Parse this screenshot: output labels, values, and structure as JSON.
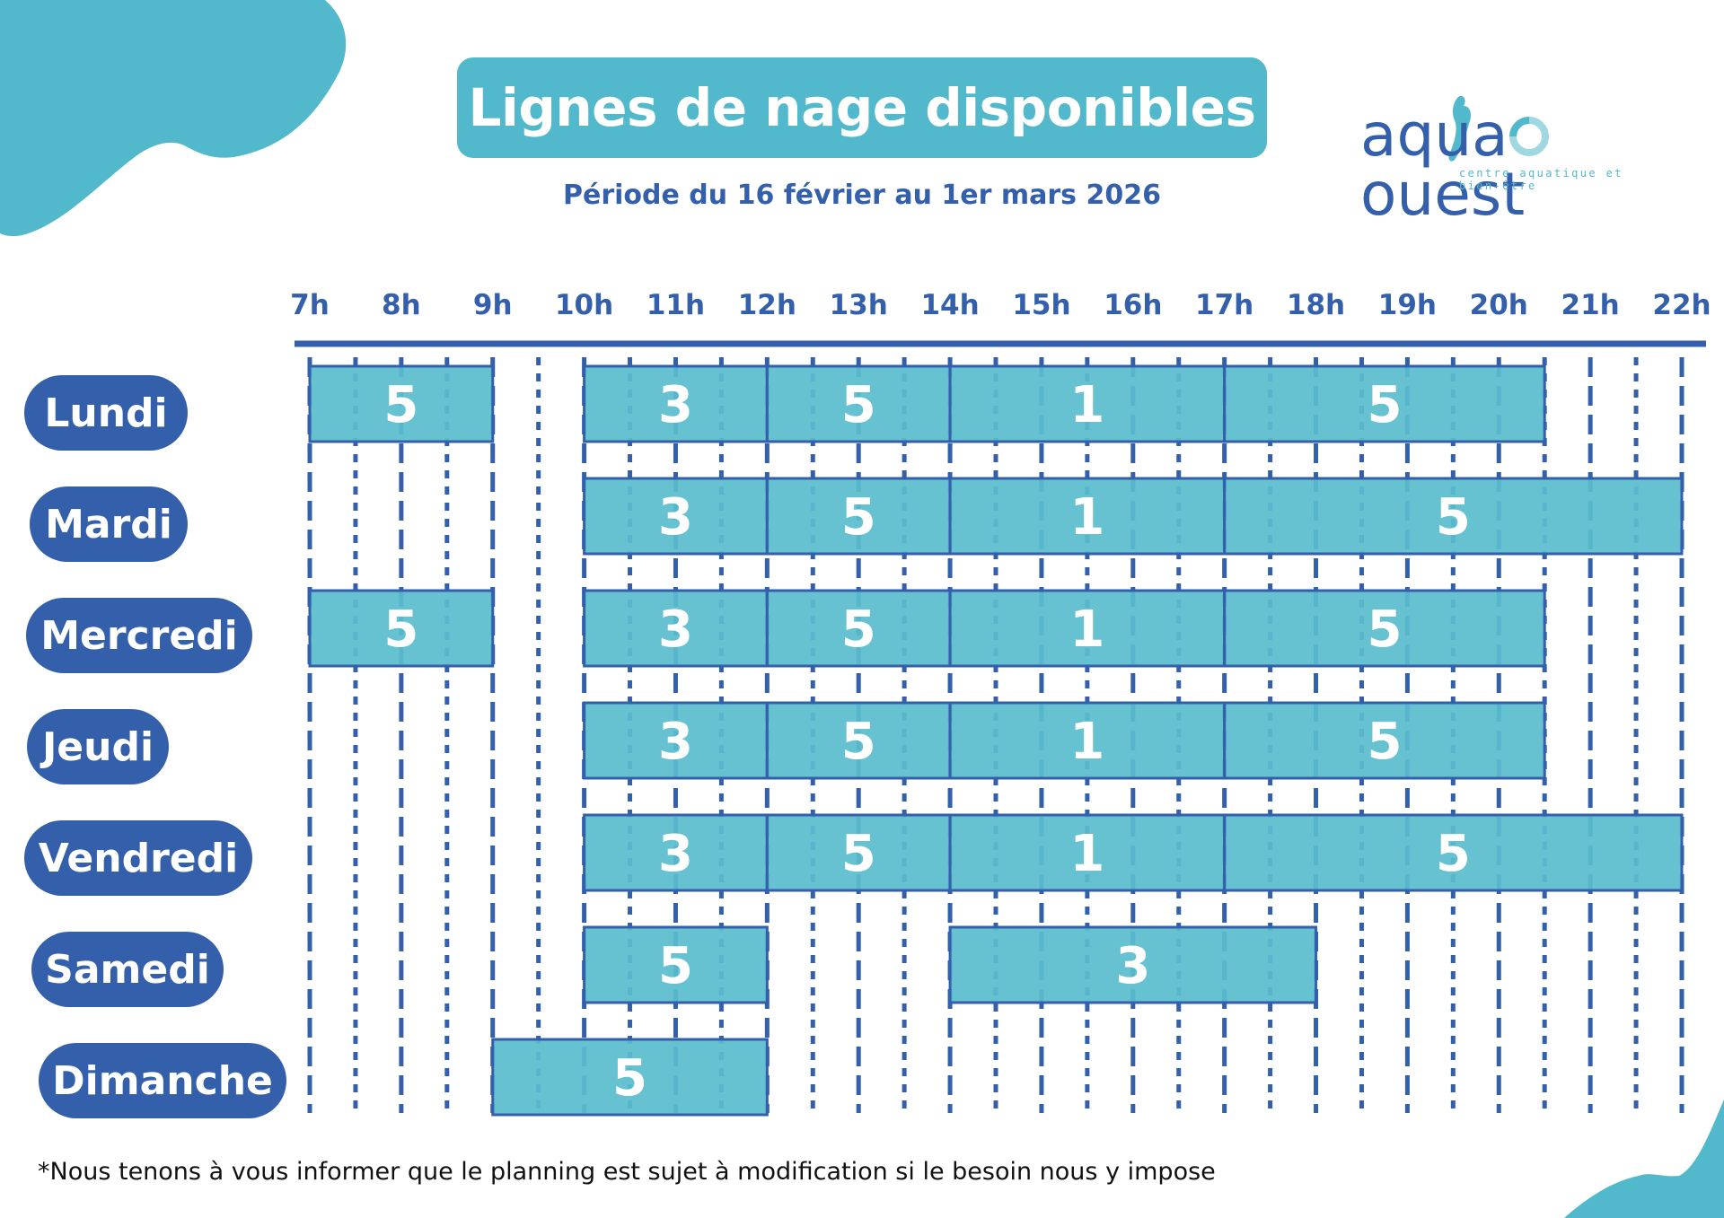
{
  "header": {
    "title": "Lignes de nage disponibles",
    "subtitle": "Période du 16 février au 1er mars 2026"
  },
  "logo": {
    "name_part1": "aqu",
    "name_part2": "a",
    "name_part3": "ouest",
    "tagline": "centre aquatique et bien-être"
  },
  "footnote": "*Nous tenons à vous informer que le planning est sujet à modification si le besoin nous y impose",
  "colors": {
    "primary_blue": "#345fab",
    "accent_teal": "#52b8cb",
    "block_fill": "#5abccd"
  },
  "chart_data": {
    "type": "gantt",
    "title": "Lignes de nage disponibles",
    "subtitle": "Période du 16 février au 1er mars 2026",
    "xlabel": "",
    "ylabel": "",
    "x_range": [
      7,
      22
    ],
    "x_ticks": [
      "7h",
      "8h",
      "9h",
      "10h",
      "11h",
      "12h",
      "13h",
      "14h",
      "15h",
      "16h",
      "17h",
      "18h",
      "19h",
      "20h",
      "21h",
      "22h"
    ],
    "grid": true,
    "days": [
      {
        "day": "Lundi",
        "blocks": [
          {
            "start": 7,
            "end": 9,
            "lanes": "5"
          },
          {
            "start": 10,
            "end": 12,
            "lanes": "3"
          },
          {
            "start": 12,
            "end": 14,
            "lanes": "5"
          },
          {
            "start": 14,
            "end": 17,
            "lanes": "1"
          },
          {
            "start": 17,
            "end": 20.5,
            "lanes": "5"
          }
        ]
      },
      {
        "day": "Mardi",
        "blocks": [
          {
            "start": 10,
            "end": 12,
            "lanes": "3"
          },
          {
            "start": 12,
            "end": 14,
            "lanes": "5"
          },
          {
            "start": 14,
            "end": 17,
            "lanes": "1"
          },
          {
            "start": 17,
            "end": 22,
            "lanes": "5"
          }
        ]
      },
      {
        "day": "Mercredi",
        "blocks": [
          {
            "start": 7,
            "end": 9,
            "lanes": "5"
          },
          {
            "start": 10,
            "end": 12,
            "lanes": "3"
          },
          {
            "start": 12,
            "end": 14,
            "lanes": "5"
          },
          {
            "start": 14,
            "end": 17,
            "lanes": "1"
          },
          {
            "start": 17,
            "end": 20.5,
            "lanes": "5"
          }
        ]
      },
      {
        "day": "Jeudi",
        "blocks": [
          {
            "start": 10,
            "end": 12,
            "lanes": "3"
          },
          {
            "start": 12,
            "end": 14,
            "lanes": "5"
          },
          {
            "start": 14,
            "end": 17,
            "lanes": "1"
          },
          {
            "start": 17,
            "end": 20.5,
            "lanes": "5"
          }
        ]
      },
      {
        "day": "Vendredi",
        "blocks": [
          {
            "start": 10,
            "end": 12,
            "lanes": "3"
          },
          {
            "start": 12,
            "end": 14,
            "lanes": "5"
          },
          {
            "start": 14,
            "end": 17,
            "lanes": "1"
          },
          {
            "start": 17,
            "end": 22,
            "lanes": "5"
          }
        ]
      },
      {
        "day": "Samedi",
        "blocks": [
          {
            "start": 10,
            "end": 12,
            "lanes": "5"
          },
          {
            "start": 14,
            "end": 18,
            "lanes": "3"
          }
        ]
      },
      {
        "day": "Dimanche",
        "blocks": [
          {
            "start": 9,
            "end": 12,
            "lanes": "5"
          }
        ]
      }
    ]
  }
}
